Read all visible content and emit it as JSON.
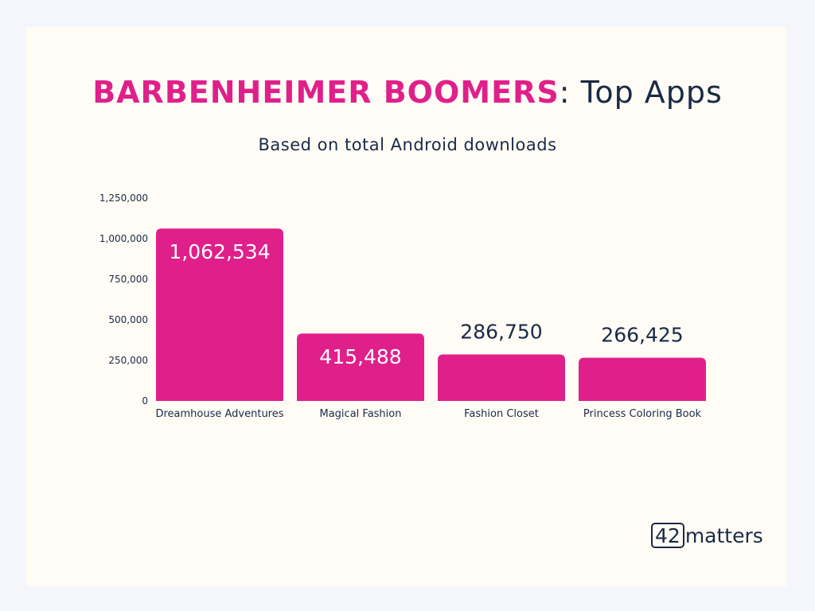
{
  "title": {
    "accent": "BARBENHEIMER BOOMERS",
    "rest": ": Top Apps"
  },
  "subtitle": "Based on total Android downloads",
  "logo": {
    "box_text": "42",
    "text": "matters"
  },
  "colors": {
    "bar": "#e0208a",
    "text_dark": "#1a2a45",
    "label_inside": "#ffffff"
  },
  "chart_data": {
    "type": "bar",
    "title": "BARBENHEIMER BOOMERS: Top Apps",
    "subtitle": "Based on total Android downloads",
    "categories": [
      "Dreamhouse Adventures",
      "Magical Fashion",
      "Fashion Closet",
      "Princess Coloring Book"
    ],
    "values": [
      1062534,
      415488,
      286750,
      266425
    ],
    "data_labels": [
      "1,062,534",
      "415,488",
      "286,750",
      "266,425"
    ],
    "yticks": [
      0,
      250000,
      500000,
      750000,
      1000000,
      1250000
    ],
    "ytick_labels": [
      "0",
      "250,000",
      "500,000",
      "750,000",
      "1,000,000",
      "1,250,000"
    ],
    "ylim": [
      0,
      1250000
    ],
    "grid": false,
    "xlabel": "",
    "ylabel": ""
  }
}
